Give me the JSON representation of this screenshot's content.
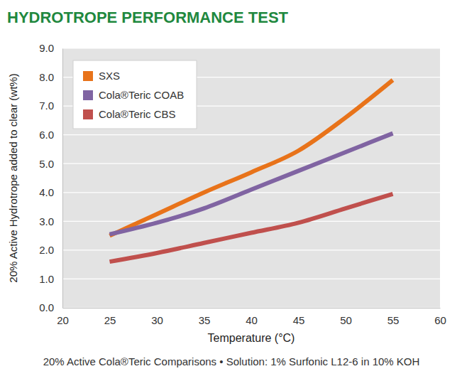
{
  "chart_data": {
    "type": "line",
    "title": "HYDROTROPE PERFORMANCE TEST",
    "subtitle": "20% Active Cola®Teric Comparisons • Solution: 1% Surfonic L12-6 in 10% KOH",
    "x_label": "Temperature (°C)",
    "y_label": "20% Active Hydrotrope added to clear (wt%)",
    "x": [
      25,
      30,
      35,
      40,
      45,
      50,
      55
    ],
    "series": [
      {
        "name": "SXS",
        "color": "#e8731a",
        "values": [
          2.5,
          3.25,
          4.0,
          4.7,
          5.45,
          6.6,
          7.9
        ]
      },
      {
        "name": "Cola®Teric COAB",
        "color": "#8064a2",
        "values": [
          2.55,
          2.95,
          3.45,
          4.1,
          4.75,
          5.4,
          6.05
        ]
      },
      {
        "name": "Cola®Teric CBS",
        "color": "#c0504d",
        "values": [
          1.6,
          1.9,
          2.25,
          2.6,
          2.95,
          3.45,
          3.95
        ]
      }
    ],
    "xlim": [
      20,
      60
    ],
    "xticks": [
      20,
      25,
      30,
      35,
      40,
      45,
      50,
      55,
      60
    ],
    "ylim": [
      0,
      9
    ],
    "yticks": [
      {
        "value": 0,
        "label": "0.0"
      },
      {
        "value": 1,
        "label": "1.0"
      },
      {
        "value": 2,
        "label": "2.0"
      },
      {
        "value": 3,
        "label": "3.0"
      },
      {
        "value": 4,
        "label": "4.0"
      },
      {
        "value": 5,
        "label": "5.0"
      },
      {
        "value": 6,
        "label": "6.0"
      },
      {
        "value": 7,
        "label": "7.0"
      },
      {
        "value": 8,
        "label": "8.0"
      },
      {
        "value": 9,
        "label": "9.0"
      }
    ],
    "grid": true,
    "legend": "upper left"
  }
}
